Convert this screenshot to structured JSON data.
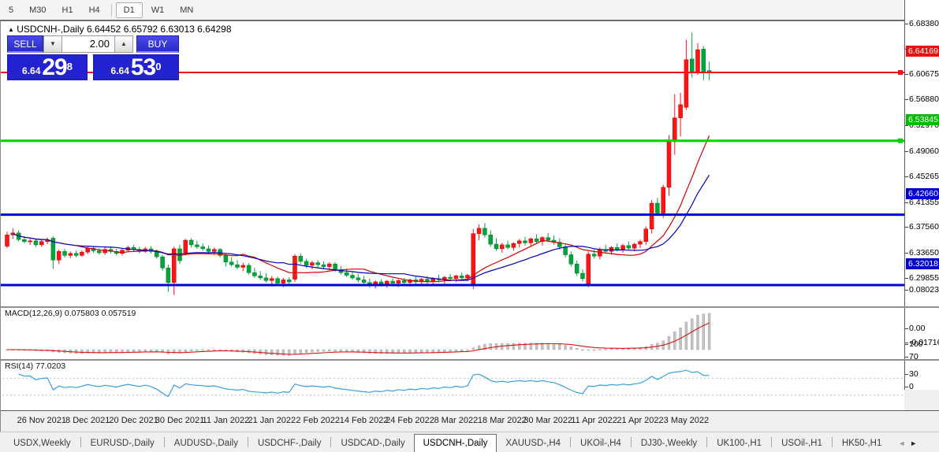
{
  "toolbar": {
    "items": [
      "5",
      "M30",
      "H1",
      "H4",
      "D1",
      "W1",
      "MN"
    ],
    "active": "D1"
  },
  "window": {
    "title_arrow": "▲",
    "symbol_title": "USDCNH-,Daily",
    "ohlc": {
      "open": "6.64452",
      "high": "6.65792",
      "low": "6.63013",
      "close": "6.64298"
    }
  },
  "trade_panel": {
    "sell_label": "SELL",
    "buy_label": "BUY",
    "volume": "2.00",
    "down_arrow": "▼",
    "up_arrow": "▲",
    "sell_price_small": "6.64",
    "sell_price_big": "29",
    "sell_price_sup": "8",
    "buy_price_small": "6.64",
    "buy_price_big": "53",
    "buy_price_sup": "0"
  },
  "price_lines": [
    {
      "label": "6.64169",
      "price": 6.64169,
      "color": "#f21212",
      "badge": "#e81111",
      "width": 2
    },
    {
      "label": "6.53845",
      "price": 6.53845,
      "color": "#00d400",
      "badge": "#00bb00",
      "width": 3
    },
    {
      "label": "6.42660",
      "price": 6.4266,
      "color": "#0000d8",
      "badge": "#0000cc",
      "width": 3
    },
    {
      "label": "6.32018",
      "price": 6.32018,
      "color": "#0000d8",
      "badge": "#0000cc",
      "width": 3
    }
  ],
  "macd_panel": {
    "name": "MACD(12,26,9)",
    "values": "0.075803 0.057519",
    "axis": [
      {
        "label": "0.08023",
        "value": 0.08023
      },
      {
        "label": "0.00",
        "value": 0
      },
      {
        "label": "-0.017168",
        "value": -0.017168
      }
    ],
    "bar_color": "#c2c2c2",
    "bar_edge": "#a0a0a0",
    "signal_color": "#e01010"
  },
  "rsi_panel": {
    "name": "RSI(14)",
    "value": "77.0203",
    "axis": [
      {
        "label": "100",
        "value": 100
      },
      {
        "label": "70",
        "value": 70
      },
      {
        "label": "30",
        "value": 30
      },
      {
        "label": "0",
        "value": 0
      }
    ],
    "line_color": "#3a9fdc",
    "levels": [
      70,
      30
    ]
  },
  "chart_data": {
    "type": "candlestick",
    "symbol": "USDCNH-",
    "timeframe": "Daily",
    "up_color": "#fb1515",
    "up_edge": "#c40000",
    "down_color": "#00a53c",
    "down_edge": "#007a2a",
    "ma_fast_color": "#d40000",
    "ma_slow_color": "#0000bb",
    "y_ticks": [
      "6.68380",
      "6.64585",
      "6.60675",
      "6.56880",
      "6.52970",
      "6.49060",
      "6.45265",
      "6.41355",
      "6.37560",
      "6.33650",
      "6.29855"
    ],
    "x_labels": [
      "26 Nov 2021",
      "8 Dec 2021",
      "20 Dec 2021",
      "30 Dec 2021",
      "11 Jan 2022",
      "21 Jan 2022",
      "2 Feb 2022",
      "14 Feb 2022",
      "24 Feb 2022",
      "8 Mar 2022",
      "18 Mar 2022",
      "30 Mar 2022",
      "11 Apr 2022",
      "21 Apr 2022",
      "3 May 2022"
    ],
    "candles": [
      [
        6.379,
        6.401,
        6.376,
        6.396
      ],
      [
        6.396,
        6.406,
        6.39,
        6.399
      ],
      [
        6.399,
        6.403,
        6.386,
        6.389
      ],
      [
        6.389,
        6.394,
        6.383,
        6.386
      ],
      [
        6.386,
        6.391,
        6.381,
        6.387
      ],
      [
        6.387,
        6.39,
        6.378,
        6.381
      ],
      [
        6.381,
        6.389,
        6.378,
        6.386
      ],
      [
        6.386,
        6.392,
        6.382,
        6.388
      ],
      [
        6.391,
        6.394,
        6.345,
        6.358
      ],
      [
        6.358,
        6.374,
        6.352,
        6.371
      ],
      [
        6.371,
        6.375,
        6.362,
        6.365
      ],
      [
        6.365,
        6.371,
        6.361,
        6.368
      ],
      [
        6.368,
        6.372,
        6.362,
        6.365
      ],
      [
        6.365,
        6.373,
        6.363,
        6.37
      ],
      [
        6.37,
        6.378,
        6.367,
        6.376
      ],
      [
        6.376,
        6.379,
        6.369,
        6.372
      ],
      [
        6.372,
        6.376,
        6.366,
        6.369
      ],
      [
        6.369,
        6.377,
        6.366,
        6.374
      ],
      [
        6.374,
        6.378,
        6.368,
        6.371
      ],
      [
        6.371,
        6.375,
        6.365,
        6.368
      ],
      [
        6.368,
        6.376,
        6.365,
        6.373
      ],
      [
        6.373,
        6.38,
        6.37,
        6.377
      ],
      [
        6.377,
        6.381,
        6.371,
        6.374
      ],
      [
        6.374,
        6.378,
        6.368,
        6.371
      ],
      [
        6.371,
        6.378,
        6.369,
        6.375
      ],
      [
        6.375,
        6.379,
        6.368,
        6.371
      ],
      [
        6.371,
        6.374,
        6.36,
        6.363
      ],
      [
        6.363,
        6.366,
        6.342,
        6.346
      ],
      [
        6.346,
        6.351,
        6.31,
        6.324
      ],
      [
        6.324,
        6.378,
        6.305,
        6.375
      ],
      [
        6.375,
        6.381,
        6.352,
        6.357
      ],
      [
        6.369,
        6.39,
        6.366,
        6.388
      ],
      [
        6.388,
        6.391,
        6.377,
        6.381
      ],
      [
        6.381,
        6.387,
        6.375,
        6.378
      ],
      [
        6.378,
        6.383,
        6.372,
        6.375
      ],
      [
        6.375,
        6.38,
        6.368,
        6.371
      ],
      [
        6.371,
        6.377,
        6.365,
        6.374
      ],
      [
        6.374,
        6.376,
        6.362,
        6.365
      ],
      [
        6.365,
        6.368,
        6.348,
        6.355
      ],
      [
        6.355,
        6.362,
        6.348,
        6.351
      ],
      [
        6.351,
        6.358,
        6.344,
        6.347
      ],
      [
        6.347,
        6.354,
        6.341,
        6.35
      ],
      [
        6.35,
        6.353,
        6.336,
        6.339
      ],
      [
        6.339,
        6.346,
        6.331,
        6.334
      ],
      [
        6.334,
        6.341,
        6.328,
        6.331
      ],
      [
        6.331,
        6.338,
        6.324,
        6.327
      ],
      [
        6.327,
        6.334,
        6.318,
        6.33
      ],
      [
        6.33,
        6.333,
        6.32,
        6.323
      ],
      [
        6.323,
        6.331,
        6.317,
        6.328
      ],
      [
        6.328,
        6.332,
        6.321,
        6.325
      ],
      [
        6.329,
        6.367,
        6.325,
        6.364
      ],
      [
        6.364,
        6.368,
        6.352,
        6.356
      ],
      [
        6.356,
        6.36,
        6.346,
        6.35
      ],
      [
        6.35,
        6.357,
        6.344,
        6.354
      ],
      [
        6.354,
        6.358,
        6.347,
        6.351
      ],
      [
        6.351,
        6.356,
        6.344,
        6.348
      ],
      [
        6.348,
        6.355,
        6.343,
        6.352
      ],
      [
        6.352,
        6.355,
        6.34,
        6.343
      ],
      [
        6.343,
        6.349,
        6.336,
        6.339
      ],
      [
        6.339,
        6.345,
        6.332,
        6.335
      ],
      [
        6.335,
        6.341,
        6.328,
        6.331
      ],
      [
        6.331,
        6.337,
        6.324,
        6.328
      ],
      [
        6.328,
        6.334,
        6.32,
        6.324
      ],
      [
        6.324,
        6.33,
        6.316,
        6.321
      ],
      [
        6.321,
        6.327,
        6.315,
        6.325
      ],
      [
        6.325,
        6.329,
        6.318,
        6.322
      ],
      [
        6.322,
        6.328,
        6.316,
        6.326
      ],
      [
        6.326,
        6.33,
        6.319,
        6.323
      ],
      [
        6.323,
        6.329,
        6.317,
        6.327
      ],
      [
        6.327,
        6.331,
        6.32,
        6.324
      ],
      [
        6.324,
        6.33,
        6.318,
        6.328
      ],
      [
        6.328,
        6.333,
        6.321,
        6.325
      ],
      [
        6.325,
        6.331,
        6.319,
        6.329
      ],
      [
        6.329,
        6.334,
        6.322,
        6.326
      ],
      [
        6.326,
        6.332,
        6.32,
        6.33
      ],
      [
        6.33,
        6.336,
        6.324,
        6.328
      ],
      [
        6.328,
        6.334,
        6.322,
        6.332
      ],
      [
        6.332,
        6.337,
        6.326,
        6.33
      ],
      [
        6.33,
        6.336,
        6.325,
        6.334
      ],
      [
        6.334,
        6.339,
        6.328,
        6.331
      ],
      [
        6.331,
        6.337,
        6.326,
        6.335
      ],
      [
        6.322,
        6.405,
        6.314,
        6.398
      ],
      [
        6.398,
        6.412,
        6.388,
        6.406
      ],
      [
        6.406,
        6.414,
        6.392,
        6.396
      ],
      [
        6.396,
        6.403,
        6.378,
        6.382
      ],
      [
        6.382,
        6.391,
        6.372,
        6.375
      ],
      [
        6.375,
        6.384,
        6.369,
        6.381
      ],
      [
        6.381,
        6.387,
        6.374,
        6.377
      ],
      [
        6.377,
        6.385,
        6.372,
        6.383
      ],
      [
        6.383,
        6.39,
        6.377,
        6.387
      ],
      [
        6.387,
        6.393,
        6.38,
        6.384
      ],
      [
        6.384,
        6.392,
        6.378,
        6.39
      ],
      [
        6.39,
        6.397,
        6.383,
        6.386
      ],
      [
        6.386,
        6.394,
        6.38,
        6.392
      ],
      [
        6.392,
        6.399,
        6.385,
        6.388
      ],
      [
        6.388,
        6.395,
        6.381,
        6.385
      ],
      [
        6.385,
        6.391,
        6.374,
        6.378
      ],
      [
        6.378,
        6.383,
        6.362,
        6.366
      ],
      [
        6.366,
        6.371,
        6.348,
        6.352
      ],
      [
        6.352,
        6.357,
        6.334,
        6.338
      ],
      [
        6.338,
        6.344,
        6.326,
        6.33
      ],
      [
        6.321,
        6.371,
        6.317,
        6.367
      ],
      [
        6.367,
        6.374,
        6.36,
        6.364
      ],
      [
        6.364,
        6.377,
        6.359,
        6.374
      ],
      [
        6.374,
        6.381,
        6.368,
        6.371
      ],
      [
        6.371,
        6.379,
        6.366,
        6.377
      ],
      [
        6.377,
        6.383,
        6.371,
        6.374
      ],
      [
        6.374,
        6.382,
        6.369,
        6.38
      ],
      [
        6.38,
        6.386,
        6.373,
        6.376
      ],
      [
        6.376,
        6.384,
        6.371,
        6.382
      ],
      [
        6.382,
        6.389,
        6.376,
        6.386
      ],
      [
        6.386,
        6.409,
        6.381,
        6.405
      ],
      [
        6.405,
        6.449,
        6.398,
        6.444
      ],
      [
        6.444,
        6.452,
        6.425,
        6.429
      ],
      [
        6.429,
        6.472,
        6.422,
        6.468
      ],
      [
        6.468,
        6.547,
        6.455,
        6.537
      ],
      [
        6.537,
        6.609,
        6.517,
        6.573
      ],
      [
        6.573,
        6.611,
        6.545,
        6.593
      ],
      [
        6.589,
        6.691,
        6.585,
        6.661
      ],
      [
        6.662,
        6.702,
        6.634,
        6.643
      ],
      [
        6.643,
        6.686,
        6.638,
        6.676
      ],
      [
        6.677,
        6.681,
        6.63,
        6.642
      ],
      [
        6.6445,
        6.6579,
        6.6301,
        6.643
      ]
    ]
  },
  "tabbar": {
    "tabs": [
      "USDX,Weekly",
      "EURUSD-,Daily",
      "AUDUSD-,Daily",
      "USDCHF-,Daily",
      "USDCAD-,Daily",
      "USDCNH-,Daily",
      "XAUUSD-,H4",
      "UKOil-,H4",
      "DJ30-,Weekly",
      "UK100-,H1",
      "USOil-,H1",
      "HK50-,H1"
    ],
    "active": "USDCNH-,Daily",
    "left_arrow": "◄",
    "right_arrow": "►"
  }
}
